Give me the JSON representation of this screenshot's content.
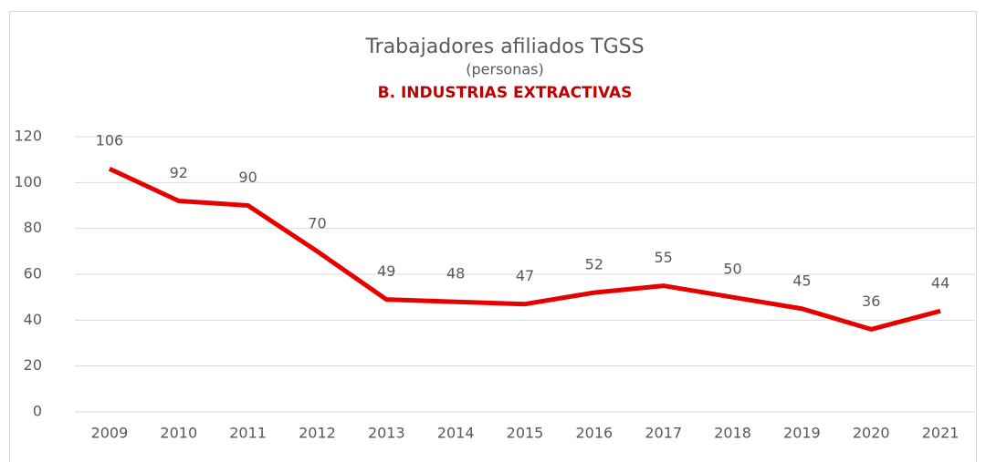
{
  "chart_data": {
    "type": "line",
    "title": "Trabajadores afiliados TGSS",
    "subtitle": "(personas)",
    "heading": "B. INDUSTRIAS EXTRACTIVAS",
    "categories": [
      "2009",
      "2010",
      "2011",
      "2012",
      "2013",
      "2014",
      "2015",
      "2016",
      "2017",
      "2018",
      "2019",
      "2020",
      "2021"
    ],
    "values": [
      106,
      92,
      90,
      70,
      49,
      48,
      47,
      52,
      55,
      50,
      45,
      36,
      44
    ],
    "color": "#e60000",
    "ylim": [
      0,
      120
    ],
    "yticks": [
      0,
      20,
      40,
      60,
      80,
      100,
      120
    ],
    "grid": true
  }
}
